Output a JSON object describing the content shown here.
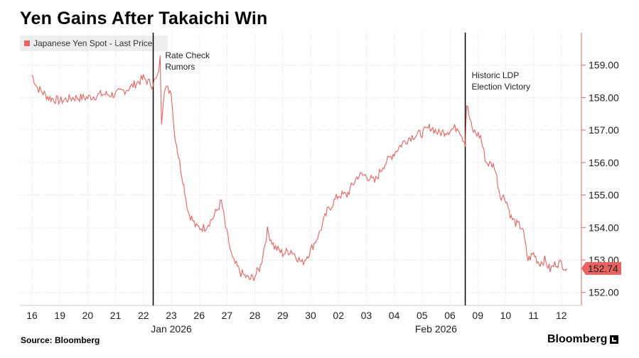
{
  "title": "Yen Gains After Takaichi Win",
  "legend": "Japanese Yen Spot - Last Price",
  "source": "Source: Bloomberg",
  "brand": "Bloomberg",
  "colors": {
    "series": "#e8625f",
    "grid": "#dddddd",
    "vline": "#000000"
  },
  "chart_data": {
    "type": "line",
    "title": "Yen Gains After Takaichi Win",
    "series": [
      {
        "name": "Japanese Yen Spot - Last Price",
        "x": [
          "16",
          "19",
          "20",
          "21",
          "22",
          "23",
          "26",
          "27",
          "28",
          "29",
          "30",
          "02",
          "03",
          "04",
          "05",
          "06",
          "09",
          "10",
          "11",
          "12"
        ],
        "keypoints": [
          [
            0,
            158.7
          ],
          [
            0.2,
            158.3
          ],
          [
            0.6,
            158.0
          ],
          [
            1.0,
            157.9
          ],
          [
            1.5,
            158.0
          ],
          [
            2.0,
            158.0
          ],
          [
            2.5,
            158.1
          ],
          [
            3.0,
            158.1
          ],
          [
            3.5,
            158.3
          ],
          [
            4.0,
            158.6
          ],
          [
            4.3,
            158.4
          ],
          [
            4.5,
            158.6
          ],
          [
            4.6,
            159.2
          ],
          [
            4.65,
            157.3
          ],
          [
            4.75,
            158.3
          ],
          [
            5.0,
            158.2
          ],
          [
            5.1,
            157.0
          ],
          [
            5.3,
            156.0
          ],
          [
            5.45,
            155.3
          ],
          [
            5.6,
            154.5
          ],
          [
            5.9,
            154.0
          ],
          [
            6.2,
            154.0
          ],
          [
            6.5,
            154.3
          ],
          [
            6.8,
            154.8
          ],
          [
            6.95,
            154.0
          ],
          [
            7.2,
            153.0
          ],
          [
            7.5,
            152.6
          ],
          [
            7.8,
            152.4
          ],
          [
            8.0,
            152.5
          ],
          [
            8.2,
            152.8
          ],
          [
            8.45,
            153.9
          ],
          [
            8.7,
            153.4
          ],
          [
            9.0,
            153.2
          ],
          [
            9.3,
            153.3
          ],
          [
            9.7,
            152.9
          ],
          [
            10.0,
            153.3
          ],
          [
            10.3,
            153.8
          ],
          [
            10.6,
            154.5
          ],
          [
            11.0,
            155.0
          ],
          [
            11.3,
            155.0
          ],
          [
            11.7,
            155.6
          ],
          [
            12.0,
            155.6
          ],
          [
            12.3,
            155.4
          ],
          [
            12.6,
            155.9
          ],
          [
            13.0,
            156.3
          ],
          [
            13.3,
            156.6
          ],
          [
            13.6,
            156.8
          ],
          [
            14.0,
            156.9
          ],
          [
            14.3,
            157.1
          ],
          [
            14.6,
            156.9
          ],
          [
            15.0,
            157.0
          ],
          [
            15.3,
            157.1
          ],
          [
            15.55,
            156.6
          ],
          [
            15.6,
            157.8
          ],
          [
            15.8,
            157.0
          ],
          [
            16.1,
            156.8
          ],
          [
            16.3,
            156.0
          ],
          [
            16.6,
            155.9
          ],
          [
            16.8,
            155.0
          ],
          [
            17.0,
            154.9
          ],
          [
            17.2,
            154.3
          ],
          [
            17.4,
            154.1
          ],
          [
            17.6,
            154.0
          ],
          [
            17.8,
            153.0
          ],
          [
            18.0,
            153.2
          ],
          [
            18.2,
            152.9
          ],
          [
            18.4,
            153.0
          ],
          [
            18.6,
            152.7
          ],
          [
            18.8,
            152.9
          ],
          [
            19.0,
            152.9
          ],
          [
            19.2,
            152.7
          ]
        ],
        "last": 152.74
      }
    ],
    "ylabel": "",
    "xlabel": "",
    "ylim": [
      151.6,
      160.0
    ],
    "yticks": [
      "152.00",
      "153.00",
      "154.00",
      "155.00",
      "156.00",
      "157.00",
      "158.00",
      "159.00"
    ],
    "month_labels": [
      {
        "label": "Jan 2026",
        "at": 5
      },
      {
        "label": "Feb 2026",
        "at": 14.5
      }
    ],
    "annotations": [
      {
        "text": [
          "Rate Check",
          "Rumors"
        ],
        "at": 4.6
      },
      {
        "text": [
          "Historic LDP",
          "Election Victory"
        ],
        "at": 15.6
      }
    ],
    "vlines": [
      4.35,
      15.55
    ],
    "last_label": "152.74",
    "legend_position": "top-left"
  }
}
